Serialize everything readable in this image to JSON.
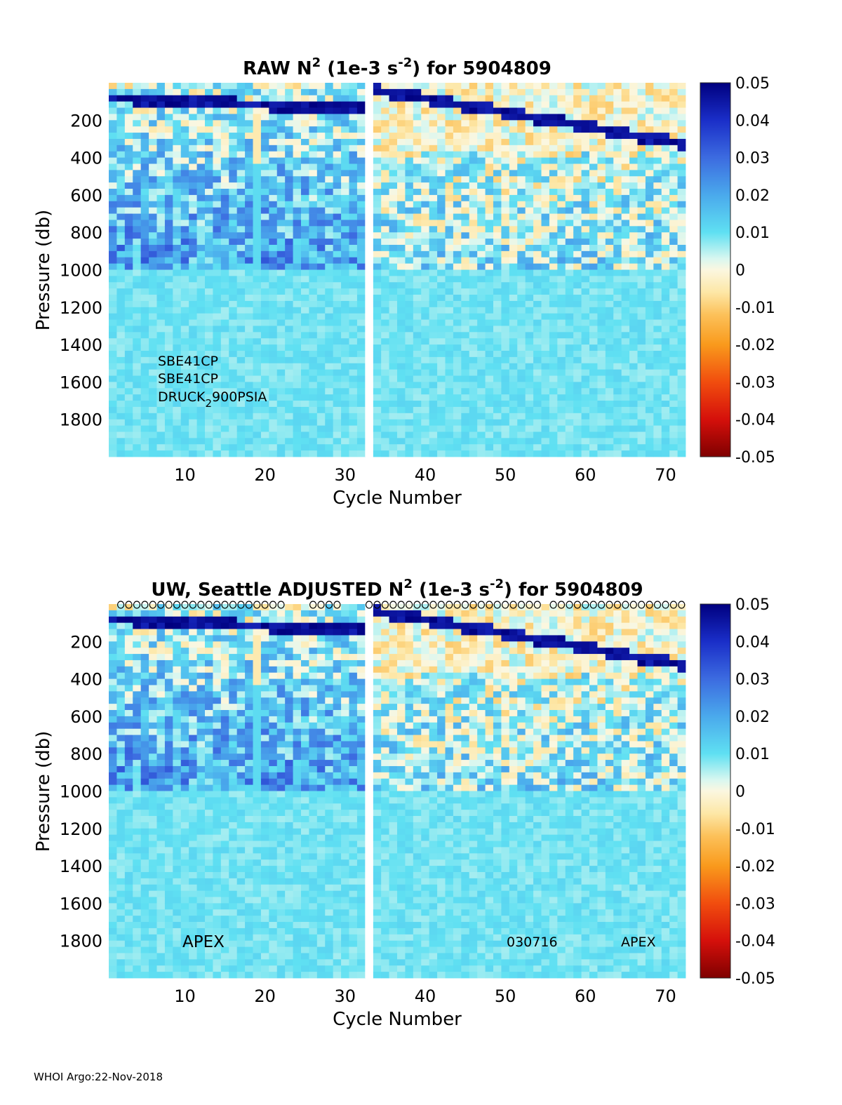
{
  "footer": "WHOI Argo:22-Nov-2018",
  "chart_data": [
    {
      "type": "heatmap",
      "title_pre": "RAW N",
      "title_sup": "2",
      "title_mid": " (1e-3 s",
      "title_sup2": "-2",
      "title_post": ") for 5904809",
      "xlabel": "Cycle Number",
      "ylabel": "Pressure (db)",
      "xlim": [
        1,
        72
      ],
      "ylim": [
        0,
        2000
      ],
      "xticks": [
        10,
        20,
        30,
        40,
        50,
        60,
        70
      ],
      "yticks": [
        200,
        400,
        600,
        800,
        1000,
        1200,
        1400,
        1600,
        1800
      ],
      "clim": [
        -0.05,
        0.05
      ],
      "cticks": [
        "0.05",
        "0.04",
        "0.03",
        "0.02",
        "0.01",
        "0",
        "-0.01",
        "-0.02",
        "-0.03",
        "-0.04",
        "-0.05"
      ],
      "gap_cycle": 33,
      "annotations": [
        "SBE41CP",
        "SBE41CP"
      ],
      "druck": {
        "pre": "DRUCK",
        "sub": "2",
        "post": "900PSIA"
      },
      "markers": []
    },
    {
      "type": "heatmap",
      "title_pre": "UW, Seattle  ADJUSTED N",
      "title_sup": "2",
      "title_mid": " (1e-3 s",
      "title_sup2": "-2",
      "title_post": ") for 5904809",
      "xlabel": "Cycle Number",
      "ylabel": "Pressure (db)",
      "xlim": [
        1,
        72
      ],
      "ylim": [
        0,
        2000
      ],
      "xticks": [
        10,
        20,
        30,
        40,
        50,
        60,
        70
      ],
      "yticks": [
        200,
        400,
        600,
        800,
        1000,
        1200,
        1400,
        1600,
        1800
      ],
      "clim": [
        -0.05,
        0.05
      ],
      "cticks": [
        "0.05",
        "0.04",
        "0.03",
        "0.02",
        "0.01",
        "0",
        "-0.01",
        "-0.02",
        "-0.03",
        "-0.04",
        "-0.05"
      ],
      "gap_cycle": 33,
      "labels": {
        "left": "APEX",
        "mid": "030716",
        "right": "APEX"
      },
      "markers": [
        2,
        3,
        4,
        5,
        6,
        7,
        8,
        9,
        10,
        11,
        12,
        13,
        14,
        15,
        16,
        17,
        18,
        19,
        20,
        21,
        22,
        26,
        27,
        28,
        29,
        33,
        34,
        35,
        36,
        37,
        38,
        39,
        40,
        41,
        42,
        43,
        44,
        45,
        46,
        47,
        48,
        49,
        50,
        51,
        52,
        53,
        54,
        56,
        57,
        58,
        59,
        60,
        61,
        62,
        63,
        64,
        65,
        66,
        67,
        68,
        69,
        70,
        71,
        72
      ]
    }
  ]
}
